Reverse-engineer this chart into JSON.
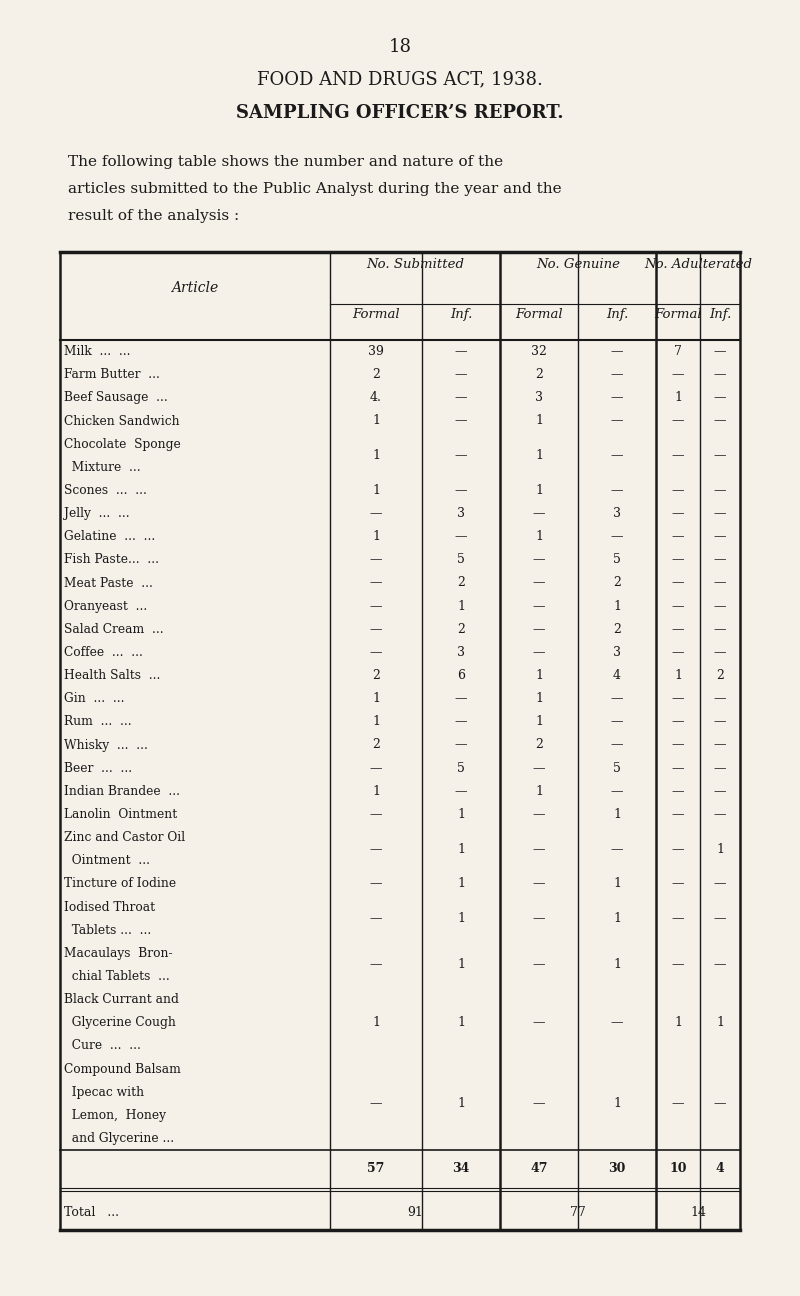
{
  "page_number": "18",
  "title1": "FOOD AND DRUGS ACT, 1938.",
  "title2": "SAMPLING OFFICER’S REPORT.",
  "intro_line1": "The following table shows the number and nature of the",
  "intro_line2": "articles submitted to the Public Analyst during the year and the",
  "intro_line3": "result of the analysis :",
  "col_headers_top": [
    "No. Submitted",
    "No. Genuine",
    "No. Adulterated"
  ],
  "col_headers_sub": [
    "Formal",
    "Inf.",
    "Formal",
    "Inf.",
    "Formal",
    "Inf."
  ],
  "article_col_header": "Article",
  "rows": [
    {
      "article_lines": [
        "Milk  ...  ..."
      ],
      "sub_f": "39",
      "sub_i": "—",
      "gen_f": "32",
      "gen_i": "—",
      "adu_f": "7",
      "adu_i": "—"
    },
    {
      "article_lines": [
        "Farm Butter  ..."
      ],
      "sub_f": "2",
      "sub_i": "—",
      "gen_f": "2",
      "gen_i": "—",
      "adu_f": "—",
      "adu_i": "—"
    },
    {
      "article_lines": [
        "Beef Sausage  ..."
      ],
      "sub_f": "4.",
      "sub_i": "—",
      "gen_f": "3",
      "gen_i": "—",
      "adu_f": "1",
      "adu_i": "—"
    },
    {
      "article_lines": [
        "Chicken Sandwich"
      ],
      "sub_f": "1",
      "sub_i": "—",
      "gen_f": "1",
      "gen_i": "—",
      "adu_f": "—",
      "adu_i": "—"
    },
    {
      "article_lines": [
        "Chocolate  Sponge",
        "  Mixture  ..."
      ],
      "sub_f": "1",
      "sub_i": "—",
      "gen_f": "1",
      "gen_i": "—",
      "adu_f": "—",
      "adu_i": "—"
    },
    {
      "article_lines": [
        "Scones  ...  ..."
      ],
      "sub_f": "1",
      "sub_i": "—",
      "gen_f": "1",
      "gen_i": "—",
      "adu_f": "—",
      "adu_i": "—"
    },
    {
      "article_lines": [
        "Jelly  ...  ..."
      ],
      "sub_f": "—",
      "sub_i": "3",
      "gen_f": "—",
      "gen_i": "3",
      "adu_f": "—",
      "adu_i": "—"
    },
    {
      "article_lines": [
        "Gelatine  ...  ..."
      ],
      "sub_f": "1",
      "sub_i": "—",
      "gen_f": "1",
      "gen_i": "—",
      "adu_f": "—",
      "adu_i": "—"
    },
    {
      "article_lines": [
        "Fish Paste...  ..."
      ],
      "sub_f": "—",
      "sub_i": "5",
      "gen_f": "—",
      "gen_i": "5",
      "adu_f": "—",
      "adu_i": "—"
    },
    {
      "article_lines": [
        "Meat Paste  ..."
      ],
      "sub_f": "—",
      "sub_i": "2",
      "gen_f": "—",
      "gen_i": "2",
      "adu_f": "—",
      "adu_i": "—"
    },
    {
      "article_lines": [
        "Oranyeast  ..."
      ],
      "sub_f": "—",
      "sub_i": "1",
      "gen_f": "—",
      "gen_i": "1",
      "adu_f": "—",
      "adu_i": "—"
    },
    {
      "article_lines": [
        "Salad Cream  ..."
      ],
      "sub_f": "—",
      "sub_i": "2",
      "gen_f": "—",
      "gen_i": "2",
      "adu_f": "—",
      "adu_i": "—"
    },
    {
      "article_lines": [
        "Coffee  ...  ..."
      ],
      "sub_f": "—",
      "sub_i": "3",
      "gen_f": "—",
      "gen_i": "3",
      "adu_f": "—",
      "adu_i": "—"
    },
    {
      "article_lines": [
        "Health Salts  ..."
      ],
      "sub_f": "2",
      "sub_i": "6",
      "gen_f": "1",
      "gen_i": "4",
      "adu_f": "1",
      "adu_i": "2"
    },
    {
      "article_lines": [
        "Gin  ...  ..."
      ],
      "sub_f": "1",
      "sub_i": "—",
      "gen_f": "1",
      "gen_i": "—",
      "adu_f": "—",
      "adu_i": "—"
    },
    {
      "article_lines": [
        "Rum  ...  ..."
      ],
      "sub_f": "1",
      "sub_i": "—",
      "gen_f": "1",
      "gen_i": "—",
      "adu_f": "—",
      "adu_i": "—"
    },
    {
      "article_lines": [
        "Whisky  ...  ..."
      ],
      "sub_f": "2",
      "sub_i": "—",
      "gen_f": "2",
      "gen_i": "—",
      "adu_f": "—",
      "adu_i": "—"
    },
    {
      "article_lines": [
        "Beer  ...  ..."
      ],
      "sub_f": "—",
      "sub_i": "5",
      "gen_f": "—",
      "gen_i": "5",
      "adu_f": "—",
      "adu_i": "—"
    },
    {
      "article_lines": [
        "Indian Brandee  ..."
      ],
      "sub_f": "1",
      "sub_i": "—",
      "gen_f": "1",
      "gen_i": "—",
      "adu_f": "—",
      "adu_i": "—"
    },
    {
      "article_lines": [
        "Lanolin  Ointment"
      ],
      "sub_f": "—",
      "sub_i": "1",
      "gen_f": "—",
      "gen_i": "1",
      "adu_f": "—",
      "adu_i": "—"
    },
    {
      "article_lines": [
        "Zinc and Castor Oil",
        "  Ointment  ..."
      ],
      "sub_f": "—",
      "sub_i": "1",
      "gen_f": "—",
      "gen_i": "—",
      "adu_f": "—",
      "adu_i": "1"
    },
    {
      "article_lines": [
        "Tincture of Iodine"
      ],
      "sub_f": "—",
      "sub_i": "1",
      "gen_f": "—",
      "gen_i": "1",
      "adu_f": "—",
      "adu_i": "—"
    },
    {
      "article_lines": [
        "Iodised Throat",
        "  Tablets ...  ..."
      ],
      "sub_f": "—",
      "sub_i": "1",
      "gen_f": "—",
      "gen_i": "1",
      "adu_f": "—",
      "adu_i": "—"
    },
    {
      "article_lines": [
        "Macaulays  Bron-",
        "  chial Tablets  ..."
      ],
      "sub_f": "—",
      "sub_i": "1",
      "gen_f": "—",
      "gen_i": "1",
      "adu_f": "—",
      "adu_i": "—"
    },
    {
      "article_lines": [
        "Black Currant and",
        "  Glycerine Cough",
        "  Cure  ...  ..."
      ],
      "sub_f": "1",
      "sub_i": "1",
      "gen_f": "—",
      "gen_i": "—",
      "adu_f": "1",
      "adu_i": "1"
    },
    {
      "article_lines": [
        "Compound Balsam",
        "  Ipecac with",
        "  Lemon,  Honey",
        "  and Glycerine ..."
      ],
      "sub_f": "—",
      "sub_i": "1",
      "gen_f": "—",
      "gen_i": "1",
      "adu_f": "—",
      "adu_i": "—"
    }
  ],
  "totals": [
    "57",
    "34",
    "47",
    "30",
    "10",
    "4"
  ],
  "grand_totals": [
    "91",
    "77",
    "14"
  ],
  "background_color": "#f5f0e8",
  "text_color": "#1a1a1a"
}
